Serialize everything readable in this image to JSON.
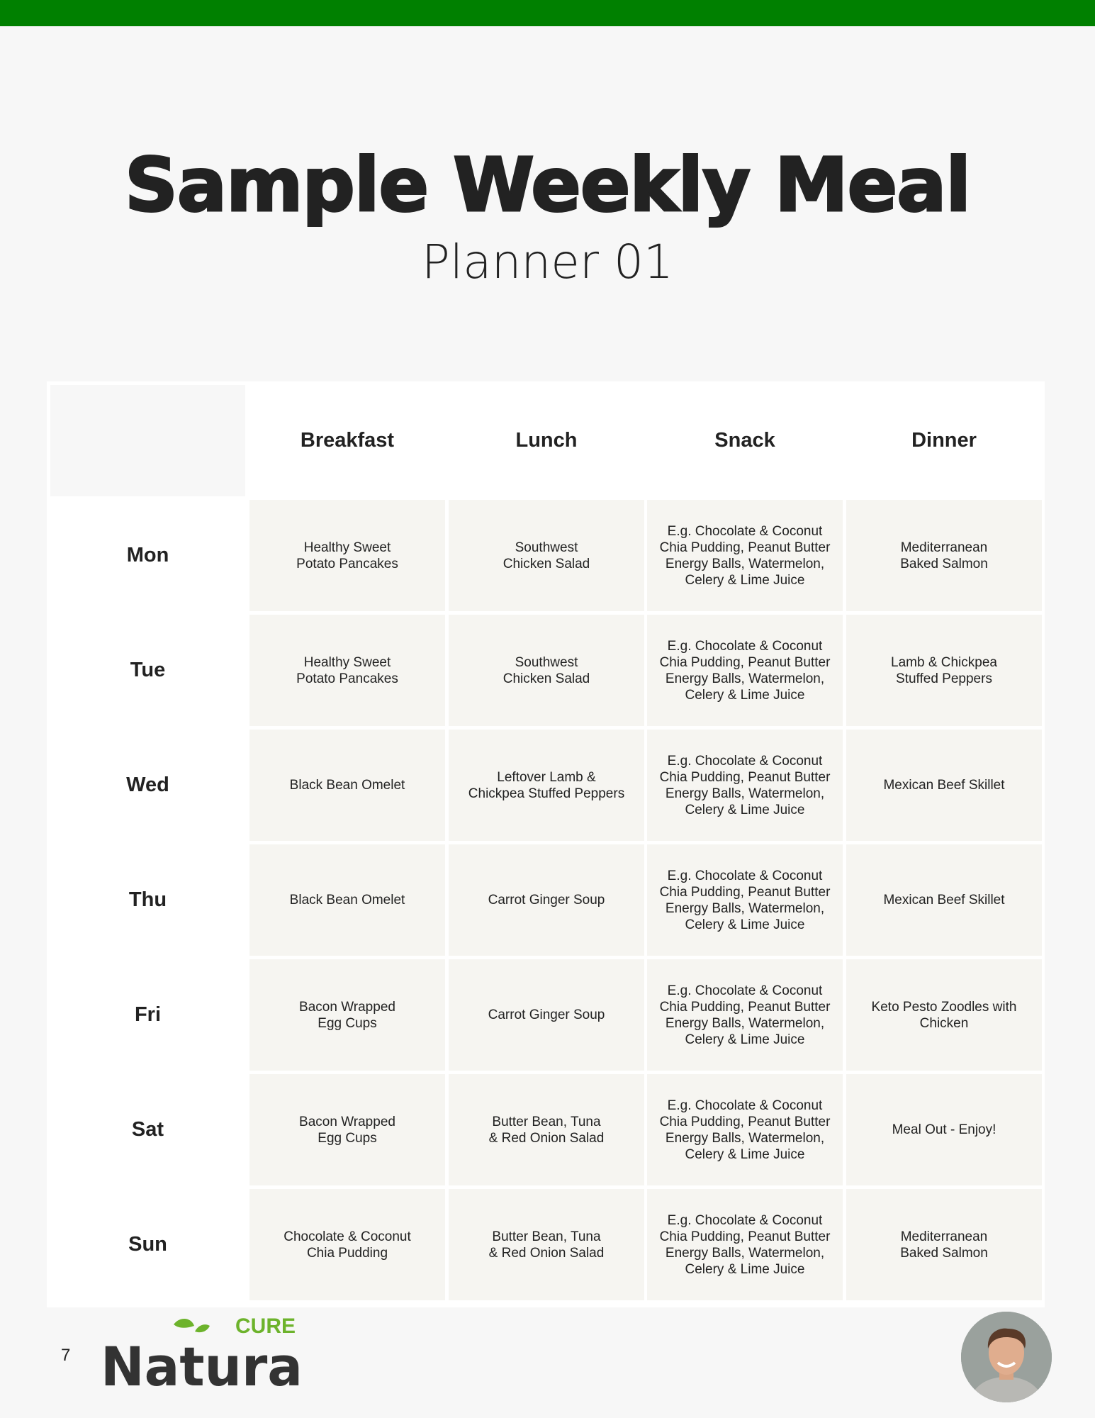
{
  "header": {
    "title": "Sample Weekly Meal",
    "subtitle": "Planner 01",
    "accent": "#008000"
  },
  "table": {
    "columns": [
      "Breakfast",
      "Lunch",
      "Snack",
      "Dinner"
    ],
    "rows": [
      {
        "day": "Mon",
        "meals": [
          "Healthy Sweet\nPotato Pancakes",
          "Southwest\nChicken Salad",
          "E.g. Chocolate & Coconut Chia Pudding, Peanut Butter Energy Balls, Watermelon, Celery & Lime Juice",
          "Mediterranean\nBaked Salmon"
        ]
      },
      {
        "day": "Tue",
        "meals": [
          "Healthy Sweet\nPotato Pancakes",
          "Southwest\nChicken Salad",
          "E.g. Chocolate & Coconut Chia Pudding, Peanut Butter Energy Balls, Watermelon, Celery & Lime Juice",
          "Lamb & Chickpea\nStuffed Peppers"
        ]
      },
      {
        "day": "Wed",
        "meals": [
          "Black Bean Omelet",
          "Leftover Lamb &\nChickpea Stuffed Peppers",
          "E.g. Chocolate & Coconut Chia Pudding, Peanut Butter Energy Balls, Watermelon, Celery & Lime Juice",
          "Mexican Beef Skillet"
        ]
      },
      {
        "day": "Thu",
        "meals": [
          "Black Bean Omelet",
          "Carrot Ginger Soup",
          "E.g. Chocolate & Coconut Chia Pudding, Peanut Butter Energy Balls, Watermelon, Celery & Lime Juice",
          "Mexican Beef Skillet"
        ]
      },
      {
        "day": "Fri",
        "meals": [
          "Bacon Wrapped\nEgg Cups",
          "Carrot Ginger Soup",
          "E.g. Chocolate & Coconut Chia Pudding, Peanut Butter Energy Balls, Watermelon, Celery & Lime Juice",
          "Keto Pesto Zoodles with Chicken"
        ]
      },
      {
        "day": "Sat",
        "meals": [
          "Bacon Wrapped\nEgg Cups",
          "Butter Bean, Tuna\n& Red Onion Salad",
          "E.g. Chocolate & Coconut Chia Pudding, Peanut Butter Energy Balls, Watermelon, Celery & Lime Juice",
          "Meal Out - Enjoy!"
        ]
      },
      {
        "day": "Sun",
        "meals": [
          "Chocolate & Coconut\nChia Pudding",
          "Butter Bean, Tuna\n& Red Onion Salad",
          "E.g. Chocolate & Coconut Chia Pudding, Peanut Butter Energy Balls, Watermelon, Celery & Lime Juice",
          "Mediterranean\nBaked Salmon"
        ]
      }
    ]
  },
  "footer": {
    "page_number": "7",
    "logo": {
      "word": "Natura",
      "tag": "CURE",
      "dark": "#333333",
      "green": "#6db32c"
    }
  }
}
